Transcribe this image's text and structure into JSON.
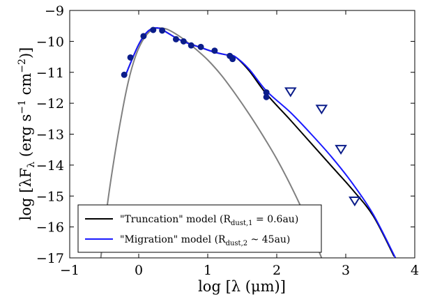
{
  "chart_data": {
    "type": "line",
    "title": "",
    "xlabel": "log [λ (μm)]",
    "ylabel": "log [λF_λ (erg s^−1 cm^−2)]",
    "xlim": [
      -1,
      4
    ],
    "ylim": [
      -17,
      -9
    ],
    "xticks": [
      -1,
      0,
      1,
      2,
      3,
      4
    ],
    "yticks": [
      -17,
      -16,
      -15,
      -14,
      -13,
      -12,
      -11,
      -10,
      -9
    ],
    "xtick_labels": [
      "−1",
      "0",
      "1",
      "2",
      "3",
      "4"
    ],
    "ytick_labels": [
      "−17",
      "−16",
      "−15",
      "−14",
      "−13",
      "−12",
      "−11",
      "−10",
      "−9"
    ],
    "grid": false,
    "legend_position": "lower-left",
    "colors": {
      "truncation": "#000000",
      "migration": "#1a1aff",
      "photosphere": "#808080",
      "markers": "#0b1d8a"
    },
    "series": [
      {
        "name": "\"Truncation\" model",
        "legend_label": "\"Truncation\" model (R_dust,1 = 0.6au)",
        "style": "line",
        "color": "#000000",
        "x": [
          -0.2,
          -0.1,
          0.0,
          0.1,
          0.2,
          0.3,
          0.4,
          0.55,
          0.7,
          0.9,
          1.1,
          1.3,
          1.4,
          1.6,
          1.85,
          2.2,
          2.5,
          2.8,
          3.1,
          3.4,
          3.7
        ],
        "y": [
          -11.15,
          -10.6,
          -10.1,
          -9.75,
          -9.58,
          -9.58,
          -9.7,
          -9.9,
          -10.05,
          -10.2,
          -10.35,
          -10.45,
          -10.5,
          -10.95,
          -11.7,
          -12.55,
          -13.3,
          -14.05,
          -14.8,
          -15.65,
          -16.95
        ]
      },
      {
        "name": "\"Migration\" model",
        "legend_label": "\"Migration\" model (R_dust,2 ~ 45au)",
        "style": "line",
        "color": "#1a1aff",
        "x": [
          -0.2,
          -0.1,
          0.0,
          0.1,
          0.2,
          0.3,
          0.4,
          0.55,
          0.7,
          0.9,
          1.1,
          1.3,
          1.4,
          1.6,
          1.85,
          2.2,
          2.5,
          2.8,
          3.1,
          3.4,
          3.72
        ],
        "y": [
          -11.15,
          -10.6,
          -10.1,
          -9.75,
          -9.58,
          -9.58,
          -9.7,
          -9.9,
          -10.05,
          -10.2,
          -10.35,
          -10.45,
          -10.5,
          -10.9,
          -11.6,
          -12.3,
          -13.0,
          -13.75,
          -14.6,
          -15.6,
          -17.0
        ]
      },
      {
        "name": "photosphere",
        "style": "line",
        "color": "#808080",
        "x": [
          -0.55,
          -0.45,
          -0.35,
          -0.25,
          -0.15,
          -0.05,
          0.05,
          0.15,
          0.25,
          0.4,
          0.6,
          0.8,
          1.0,
          1.2,
          1.4,
          1.6,
          1.8,
          2.0,
          2.2,
          2.4,
          2.65
        ],
        "y": [
          -17.0,
          -15.2,
          -13.7,
          -12.4,
          -11.3,
          -10.5,
          -10.0,
          -9.7,
          -9.58,
          -9.6,
          -9.85,
          -10.2,
          -10.6,
          -11.1,
          -11.7,
          -12.35,
          -13.05,
          -13.8,
          -14.65,
          -15.6,
          -17.0
        ]
      },
      {
        "name": "photometry",
        "style": "markers",
        "marker": "circle",
        "color": "#0b1d8a",
        "x": [
          -0.21,
          -0.12,
          0.07,
          0.21,
          0.34,
          0.54,
          0.65,
          0.76,
          0.9,
          1.1,
          1.32,
          1.36,
          1.85,
          1.85
        ],
        "y": [
          -11.08,
          -10.52,
          -9.83,
          -9.63,
          -9.65,
          -9.93,
          -10.0,
          -10.13,
          -10.18,
          -10.3,
          -10.47,
          -10.57,
          -11.65,
          -11.8
        ]
      },
      {
        "name": "upper limits",
        "style": "markers",
        "marker": "triangle-down",
        "color": "#0b1d8a",
        "x": [
          2.2,
          2.65,
          2.93,
          3.13
        ],
        "y": [
          -11.62,
          -12.18,
          -13.48,
          -15.15
        ]
      }
    ]
  }
}
